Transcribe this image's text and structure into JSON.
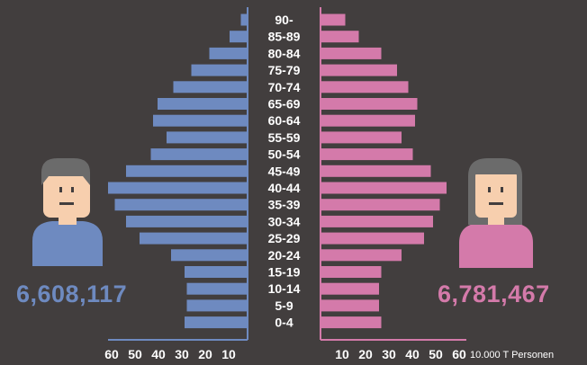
{
  "colors": {
    "background": "#423e3e",
    "male": "#6e8ac0",
    "female": "#d47aaa",
    "text": "#ffffff",
    "axis_text": "#ffffff",
    "face": "#f7cfae",
    "hair": "#6b6b6b"
  },
  "totals": {
    "male": "6,608,117",
    "female": "6,781,467"
  },
  "chart_data": {
    "type": "bar",
    "orientation": "horizontal-population-pyramid",
    "categories": [
      "90-",
      "85-89",
      "80-84",
      "75-79",
      "70-74",
      "65-69",
      "60-64",
      "55-59",
      "50-54",
      "45-49",
      "40-44",
      "35-39",
      "30-34",
      "25-29",
      "20-24",
      "15-19",
      "10-14",
      "5-9",
      "0-4"
    ],
    "series": [
      {
        "side": "left",
        "values": [
          3,
          8,
          17,
          25,
          33,
          40,
          42,
          36,
          43,
          54,
          62,
          59,
          54,
          48,
          34,
          28,
          27,
          27,
          28
        ]
      },
      {
        "side": "right",
        "values": [
          11,
          17,
          27,
          34,
          39,
          43,
          42,
          36,
          41,
          49,
          56,
          53,
          50,
          46,
          36,
          27,
          26,
          26,
          27
        ]
      }
    ],
    "xlim": [
      0,
      60
    ],
    "left_ticks": [
      "60",
      "50",
      "40",
      "30",
      "20",
      "10"
    ],
    "right_ticks": [
      "10",
      "20",
      "30",
      "40",
      "50",
      "60"
    ],
    "unit_label": "10.000 T Personen",
    "grid": false
  }
}
